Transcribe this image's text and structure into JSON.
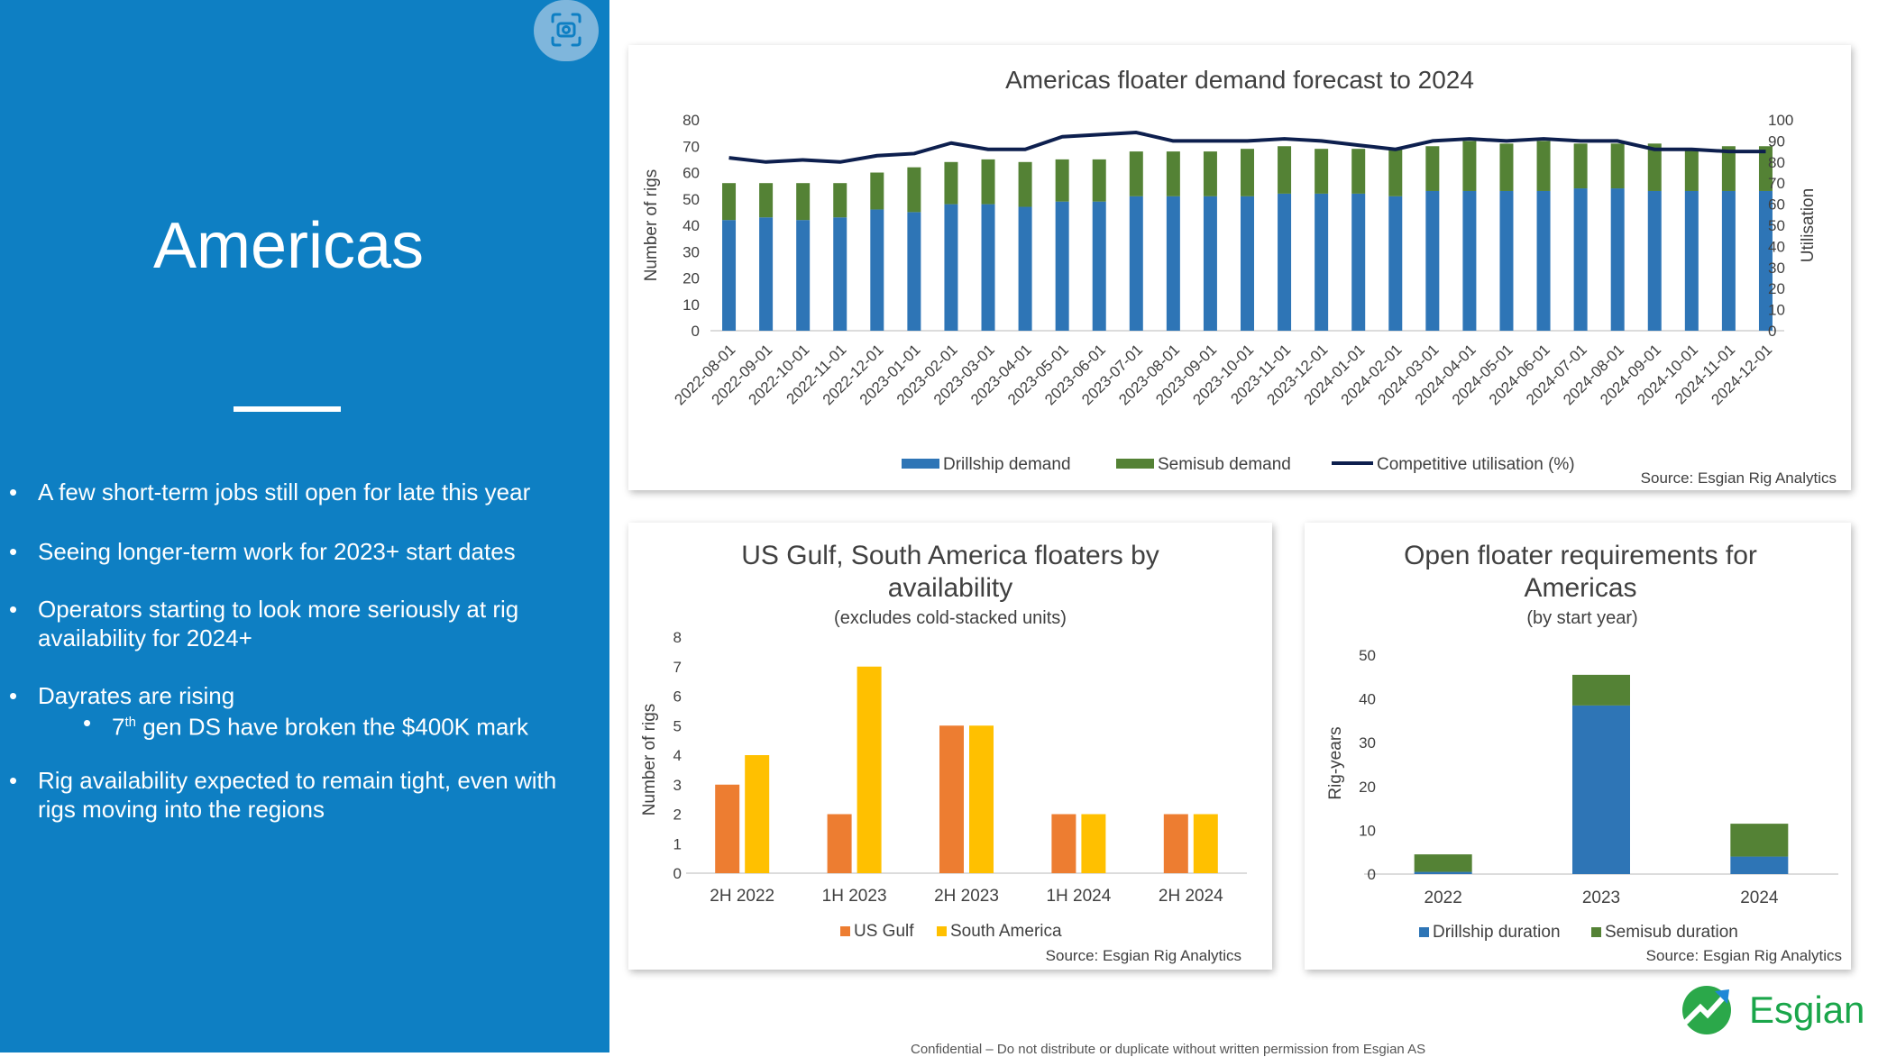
{
  "slide": {
    "title": "Americas",
    "bullets": [
      "A few short-term jobs still open for late this year",
      "Seeing longer-term work for 2023+ start dates",
      "Operators starting to look more seriously at rig availability for 2024+",
      "Dayrates are rising",
      "Rig availability expected to remain tight, even with rigs moving into the regions"
    ],
    "sub_bullet": {
      "sup": "th",
      "pre": "7",
      "text": " gen DS have broken the $400K mark"
    },
    "footer": "Confidential – Do not distribute or duplicate without written permission from Esgian AS",
    "logo_text": "Esgian"
  },
  "colors": {
    "panel": "#0e7fc3",
    "drillship": "#2e75b6",
    "semisub": "#548235",
    "utilisation": "#0d1f4e",
    "us_gulf": "#ed7d31",
    "south_america": "#ffc000"
  },
  "chart_data": [
    {
      "type": "bar",
      "stacked": true,
      "title": "Americas floater demand forecast to 2024",
      "ylabel": "Number of rigs",
      "y2label": "Utilisation",
      "ylim": [
        0,
        80
      ],
      "y2lim": [
        0,
        100
      ],
      "yticks": [
        0,
        10,
        20,
        30,
        40,
        50,
        60,
        70,
        80
      ],
      "y2ticks": [
        0,
        10,
        20,
        30,
        40,
        50,
        60,
        70,
        80,
        90,
        100
      ],
      "categories": [
        "2022-08-01",
        "2022-09-01",
        "2022-10-01",
        "2022-11-01",
        "2022-12-01",
        "2023-01-01",
        "2023-02-01",
        "2023-03-01",
        "2023-04-01",
        "2023-05-01",
        "2023-06-01",
        "2023-07-01",
        "2023-08-01",
        "2023-09-01",
        "2023-10-01",
        "2023-11-01",
        "2023-12-01",
        "2024-01-01",
        "2024-02-01",
        "2024-03-01",
        "2024-04-01",
        "2024-05-01",
        "2024-06-01",
        "2024-07-01",
        "2024-08-01",
        "2024-09-01",
        "2024-10-01",
        "2024-11-01",
        "2024-12-01"
      ],
      "series": [
        {
          "name": "Drillship demand",
          "values": [
            42,
            43,
            42,
            43,
            46,
            45,
            48,
            48,
            47,
            49,
            49,
            51,
            51,
            51,
            51,
            52,
            52,
            52,
            51,
            53,
            53,
            53,
            53,
            54,
            54,
            53,
            53,
            53,
            53
          ]
        },
        {
          "name": "Semisub demand",
          "values": [
            14,
            13,
            14,
            13,
            14,
            17,
            16,
            17,
            17,
            16,
            16,
            17,
            17,
            17,
            18,
            18,
            17,
            17,
            18,
            17,
            19,
            18,
            19,
            17,
            17,
            18,
            16,
            17,
            17
          ]
        },
        {
          "name": "Competitive utilisation (%)",
          "axis": "right",
          "values": [
            82,
            80,
            81,
            80,
            83,
            84,
            89,
            86,
            86,
            92,
            93,
            94,
            90,
            90,
            90,
            91,
            90,
            88,
            86,
            90,
            91,
            90,
            91,
            90,
            90,
            86,
            86,
            85,
            85
          ]
        }
      ],
      "legend": "bottom",
      "source": "Source: Esgian Rig Analytics"
    },
    {
      "type": "bar",
      "title": "US Gulf, South America floaters by availability",
      "subtitle": "(excludes cold-stacked units)",
      "ylabel": "Number of rigs",
      "ylim": [
        0,
        8
      ],
      "yticks": [
        0,
        1,
        2,
        3,
        4,
        5,
        6,
        7,
        8
      ],
      "categories": [
        "2H 2022",
        "1H 2023",
        "2H 2023",
        "1H 2024",
        "2H 2024"
      ],
      "series": [
        {
          "name": "US Gulf",
          "values": [
            3,
            2,
            5,
            2,
            2
          ]
        },
        {
          "name": "South America",
          "values": [
            4,
            7,
            5,
            2,
            2
          ]
        }
      ],
      "legend": "bottom",
      "source": "Source: Esgian Rig Analytics"
    },
    {
      "type": "bar",
      "stacked": true,
      "title": "Open floater requirements for Americas",
      "subtitle": "(by start year)",
      "ylabel": "Rig-years",
      "ylim": [
        0,
        50
      ],
      "yticks": [
        0,
        10,
        20,
        30,
        40,
        50
      ],
      "categories": [
        "2022",
        "2023",
        "2024"
      ],
      "series": [
        {
          "name": "Drillship duration",
          "values": [
            0.5,
            38.5,
            4
          ]
        },
        {
          "name": "Semisub duration",
          "values": [
            4,
            7,
            7.5
          ]
        }
      ],
      "legend": "bottom",
      "source": "Source: Esgian Rig Analytics"
    }
  ]
}
